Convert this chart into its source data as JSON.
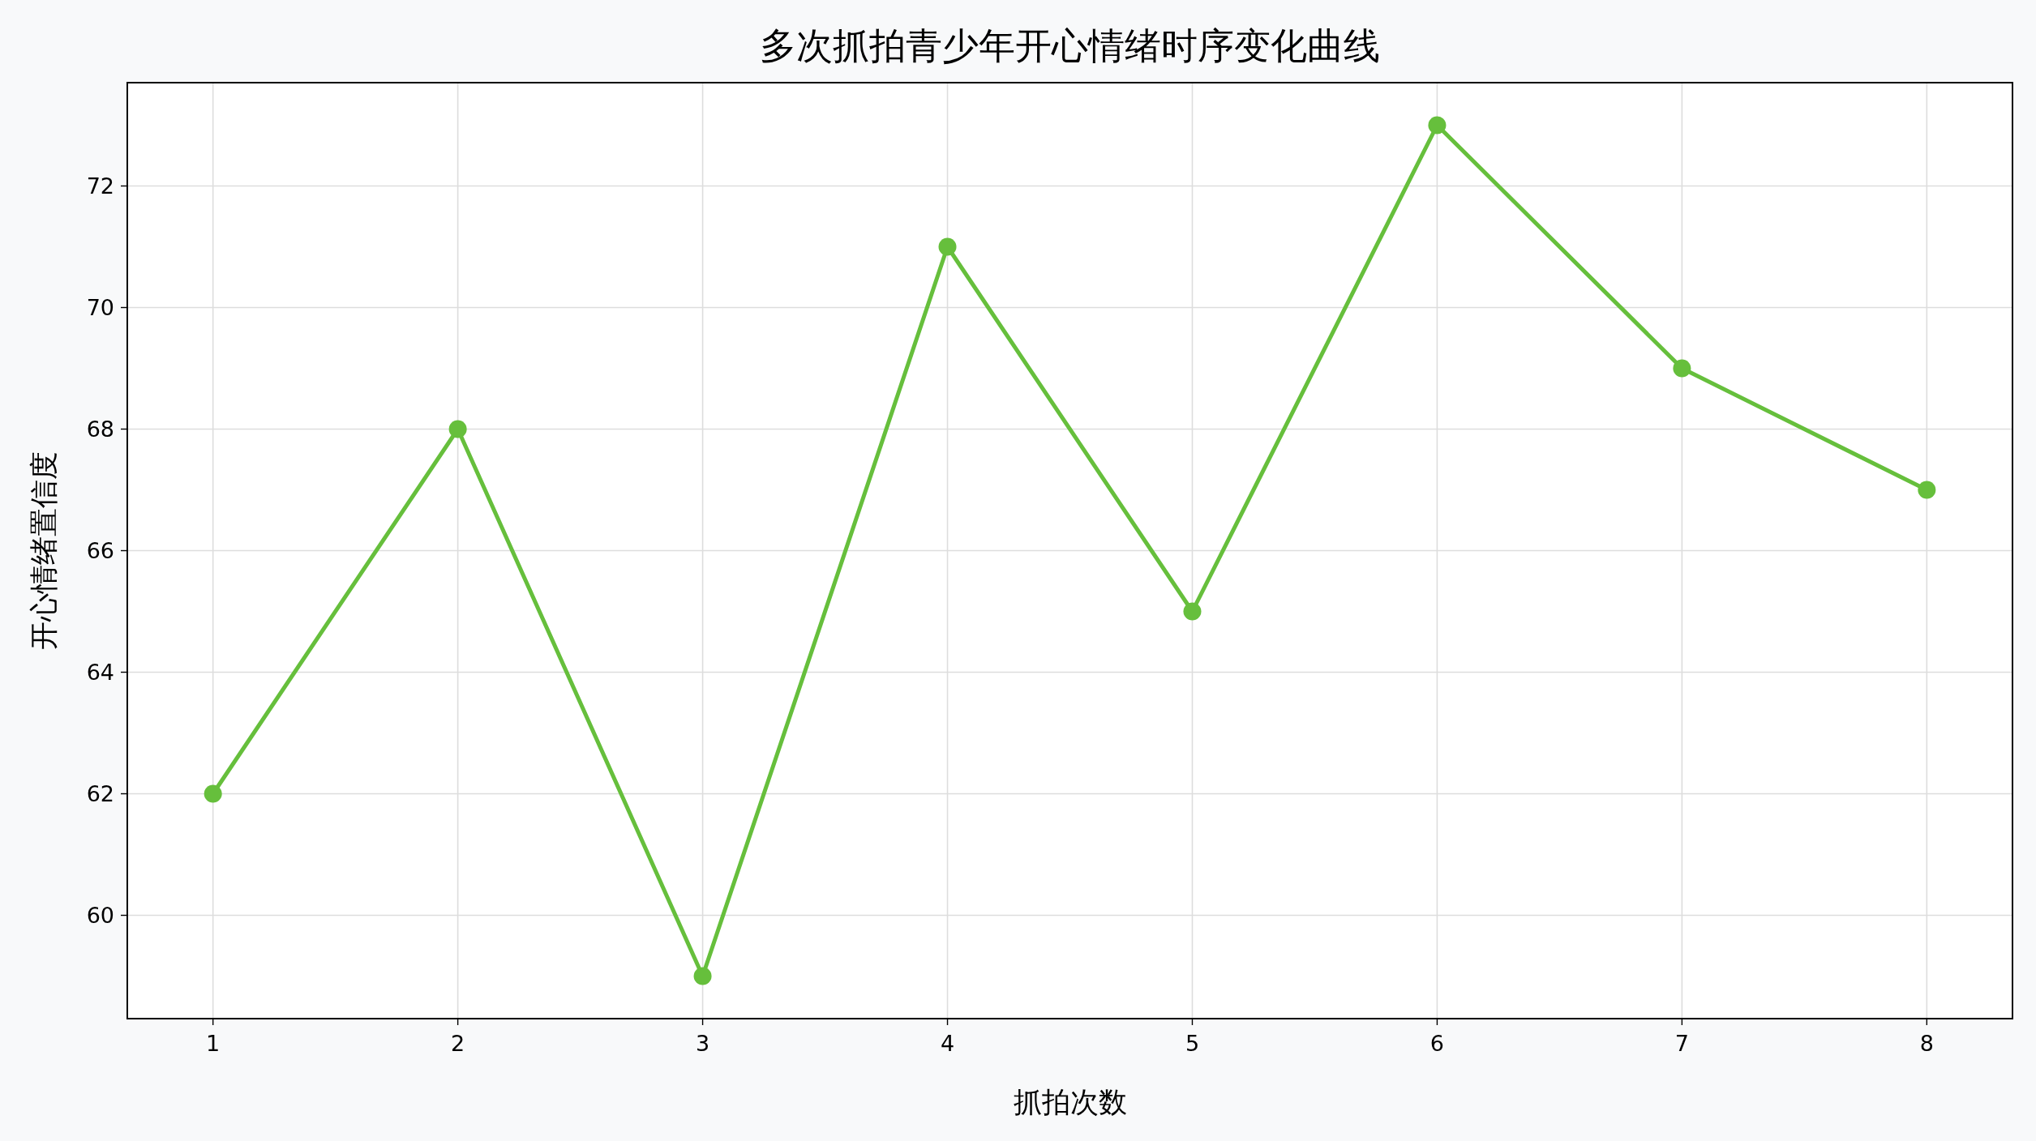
{
  "chart_data": {
    "type": "line",
    "title": "多次抓拍青少年开心情绪时序变化曲线",
    "xlabel": "抓拍次数",
    "ylabel": "开心情绪置信度",
    "x": [
      1,
      2,
      3,
      4,
      5,
      6,
      7,
      8
    ],
    "series": [
      {
        "color": "#66bf3c",
        "values": [
          62,
          68,
          59,
          71,
          65,
          73,
          69,
          67
        ]
      }
    ],
    "xlim": [
      0.65,
      8.35
    ],
    "ylim": [
      58.3,
      73.7
    ],
    "xticks": [
      1,
      2,
      3,
      4,
      5,
      6,
      7,
      8
    ],
    "yticks": [
      60,
      62,
      64,
      66,
      68,
      70,
      72
    ],
    "grid": true,
    "marker": "circle",
    "line_style": "solid"
  }
}
